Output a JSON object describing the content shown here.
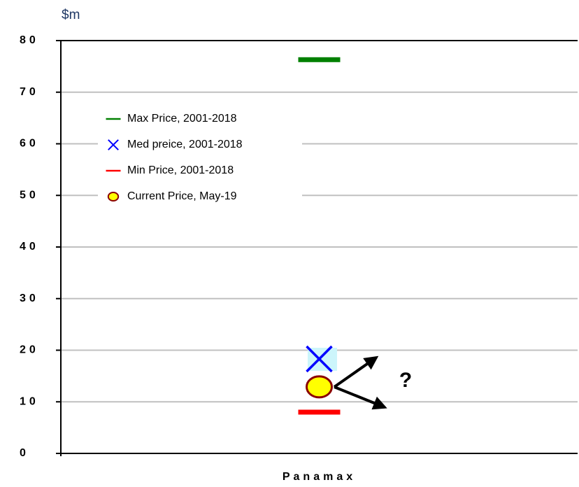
{
  "chart_data": {
    "type": "marker",
    "y_axis_label": "$m",
    "categories": [
      "Panamax"
    ],
    "annotation": "?",
    "ylim": [
      0,
      80
    ],
    "yticks": [
      0,
      10,
      20,
      30,
      40,
      50,
      60,
      70,
      80
    ],
    "grid": true,
    "series": [
      {
        "name": "Max Price, 2001-2018",
        "color": "#008000",
        "marker": "dash",
        "values": [
          76.3
        ]
      },
      {
        "name": "Med preice, 2001-2018",
        "color": "#0000ff",
        "marker": "x",
        "values": [
          18.3
        ]
      },
      {
        "name": "Min Price, 2001-2018",
        "color": "#ff0000",
        "marker": "dash",
        "values": [
          8
        ]
      },
      {
        "name": "Current Price, May-19",
        "color": "#ffff00",
        "marker": "circle",
        "values": [
          12.9
        ]
      }
    ]
  }
}
